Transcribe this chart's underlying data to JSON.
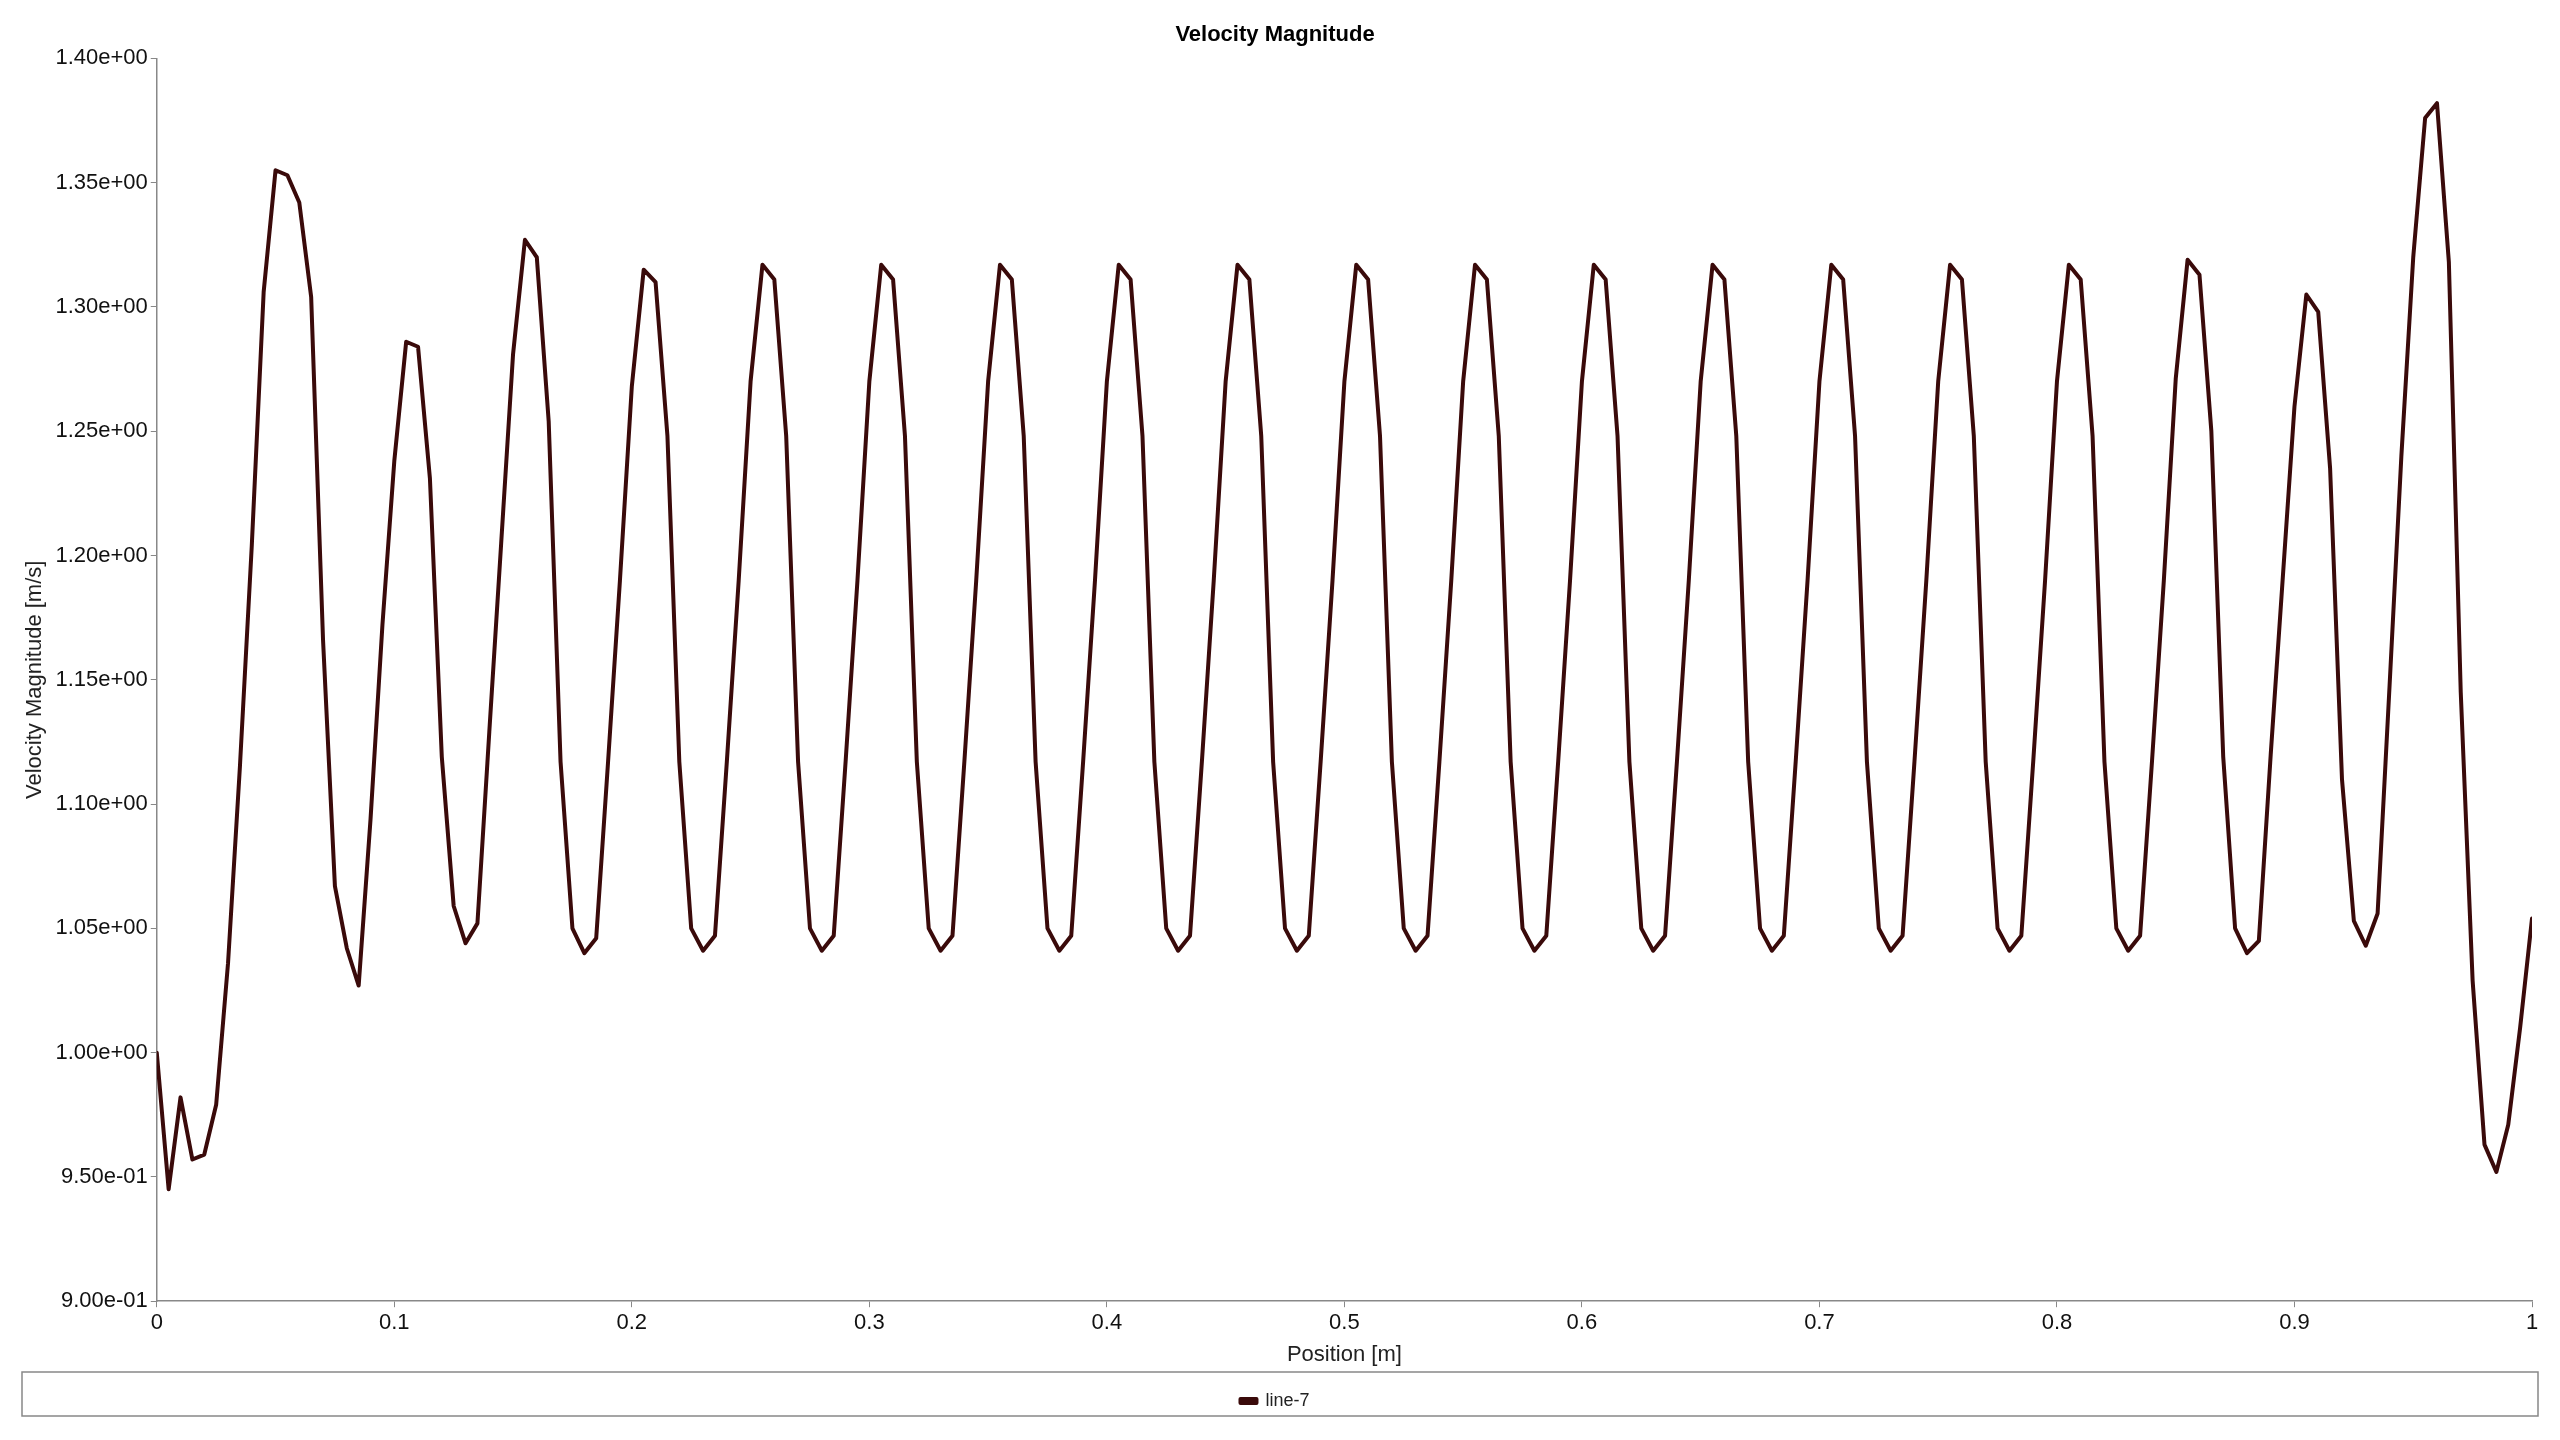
{
  "chart_data": {
    "type": "line",
    "title": "Velocity Magnitude",
    "xlabel": "Position [m]",
    "ylabel": "Velocity Magnitude [m/s]",
    "x": [
      0,
      0.005,
      0.01,
      0.015,
      0.02,
      0.025,
      0.03,
      0.035,
      0.04,
      0.045,
      0.05,
      0.055,
      0.06,
      0.065,
      0.07,
      0.075,
      0.08,
      0.085,
      0.09,
      0.095,
      0.1,
      0.105,
      0.11,
      0.115,
      0.12,
      0.125,
      0.13,
      0.135,
      0.14,
      0.145,
      0.15,
      0.155,
      0.16,
      0.165,
      0.17,
      0.175,
      0.18,
      0.185,
      0.19,
      0.195,
      0.2,
      0.205,
      0.21,
      0.215,
      0.22,
      0.225,
      0.23,
      0.235,
      0.24,
      0.245,
      0.25,
      0.255,
      0.26,
      0.265,
      0.27,
      0.275,
      0.28,
      0.285,
      0.29,
      0.295,
      0.3,
      0.305,
      0.31,
      0.315,
      0.32,
      0.325,
      0.33,
      0.335,
      0.34,
      0.345,
      0.35,
      0.355,
      0.36,
      0.365,
      0.37,
      0.375,
      0.38,
      0.385,
      0.39,
      0.395,
      0.4,
      0.405,
      0.41,
      0.415,
      0.42,
      0.425,
      0.43,
      0.435,
      0.44,
      0.445,
      0.45,
      0.455,
      0.46,
      0.465,
      0.47,
      0.475,
      0.48,
      0.485,
      0.49,
      0.495,
      0.5,
      0.505,
      0.51,
      0.515,
      0.52,
      0.525,
      0.53,
      0.535,
      0.54,
      0.545,
      0.55,
      0.555,
      0.56,
      0.565,
      0.57,
      0.575,
      0.58,
      0.585,
      0.59,
      0.595,
      0.6,
      0.605,
      0.61,
      0.615,
      0.62,
      0.625,
      0.63,
      0.635,
      0.64,
      0.645,
      0.65,
      0.655,
      0.66,
      0.665,
      0.67,
      0.675,
      0.68,
      0.685,
      0.69,
      0.695,
      0.7,
      0.705,
      0.71,
      0.715,
      0.72,
      0.725,
      0.73,
      0.735,
      0.74,
      0.745,
      0.75,
      0.755,
      0.76,
      0.765,
      0.77,
      0.775,
      0.78,
      0.785,
      0.79,
      0.795,
      0.8,
      0.805,
      0.81,
      0.815,
      0.82,
      0.825,
      0.83,
      0.835,
      0.84,
      0.845,
      0.85,
      0.855,
      0.86,
      0.865,
      0.87,
      0.875,
      0.88,
      0.885,
      0.89,
      0.895,
      0.9,
      0.905,
      0.91,
      0.915,
      0.92,
      0.925,
      0.93,
      0.935,
      0.94,
      0.945,
      0.95,
      0.955,
      0.96,
      0.965,
      0.97,
      0.975,
      0.98,
      0.985,
      0.99,
      0.995,
      1
    ],
    "series": [
      {
        "name": "line-7",
        "color": "#3a0a0a",
        "values": [
          1.0,
          0.945,
          0.982,
          0.957,
          0.959,
          0.979,
          1.036,
          1.115,
          1.204,
          1.306,
          1.355,
          1.353,
          1.342,
          1.304,
          1.166,
          1.067,
          1.042,
          1.027,
          1.094,
          1.172,
          1.238,
          1.286,
          1.284,
          1.231,
          1.119,
          1.059,
          1.044,
          1.052,
          1.129,
          1.205,
          1.281,
          1.327,
          1.32,
          1.254,
          1.117,
          1.05,
          1.04,
          1.046,
          1.117,
          1.19,
          1.268,
          1.315,
          1.31,
          1.248,
          1.117,
          1.05,
          1.041,
          1.047,
          1.117,
          1.19,
          1.27,
          1.317,
          1.311,
          1.248,
          1.117,
          1.05,
          1.041,
          1.047,
          1.117,
          1.19,
          1.27,
          1.317,
          1.311,
          1.248,
          1.117,
          1.05,
          1.041,
          1.047,
          1.117,
          1.19,
          1.27,
          1.317,
          1.311,
          1.248,
          1.117,
          1.05,
          1.041,
          1.047,
          1.117,
          1.19,
          1.27,
          1.317,
          1.311,
          1.248,
          1.117,
          1.05,
          1.041,
          1.047,
          1.117,
          1.19,
          1.27,
          1.317,
          1.311,
          1.248,
          1.117,
          1.05,
          1.041,
          1.047,
          1.117,
          1.19,
          1.27,
          1.317,
          1.311,
          1.248,
          1.117,
          1.05,
          1.041,
          1.047,
          1.117,
          1.19,
          1.27,
          1.317,
          1.311,
          1.248,
          1.117,
          1.05,
          1.041,
          1.047,
          1.117,
          1.19,
          1.27,
          1.317,
          1.311,
          1.248,
          1.117,
          1.05,
          1.041,
          1.047,
          1.117,
          1.19,
          1.27,
          1.317,
          1.311,
          1.248,
          1.117,
          1.05,
          1.041,
          1.047,
          1.117,
          1.19,
          1.27,
          1.317,
          1.311,
          1.248,
          1.117,
          1.05,
          1.041,
          1.047,
          1.117,
          1.19,
          1.27,
          1.317,
          1.311,
          1.248,
          1.117,
          1.05,
          1.041,
          1.047,
          1.117,
          1.19,
          1.27,
          1.317,
          1.311,
          1.248,
          1.117,
          1.05,
          1.041,
          1.047,
          1.117,
          1.19,
          1.271,
          1.319,
          1.313,
          1.25,
          1.119,
          1.05,
          1.04,
          1.045,
          1.12,
          1.19,
          1.26,
          1.305,
          1.298,
          1.235,
          1.11,
          1.053,
          1.043,
          1.056,
          1.147,
          1.24,
          1.32,
          1.376,
          1.382,
          1.318,
          1.145,
          1.029,
          0.963,
          0.952,
          0.971,
          1.01,
          1.054
        ]
      }
    ],
    "xlim": [
      0,
      1
    ],
    "xticks": [
      0,
      0.1,
      0.2,
      0.3,
      0.4,
      0.5,
      0.6,
      0.7,
      0.8,
      0.9,
      1
    ],
    "ylim": [
      0.9,
      1.4
    ],
    "yticks": [
      {
        "value": 0.9,
        "label": "9.00e-01"
      },
      {
        "value": 0.95,
        "label": "9.50e-01"
      },
      {
        "value": 1.0,
        "label": "1.00e+00"
      },
      {
        "value": 1.05,
        "label": "1.05e+00"
      },
      {
        "value": 1.1,
        "label": "1.10e+00"
      },
      {
        "value": 1.15,
        "label": "1.15e+00"
      },
      {
        "value": 1.2,
        "label": "1.20e+00"
      },
      {
        "value": 1.25,
        "label": "1.25e+00"
      },
      {
        "value": 1.3,
        "label": "1.30e+00"
      },
      {
        "value": 1.35,
        "label": "1.35e+00"
      },
      {
        "value": 1.4,
        "label": "1.40e+00"
      }
    ],
    "legend": "bottom",
    "marker": "none",
    "line_style": "solid"
  }
}
